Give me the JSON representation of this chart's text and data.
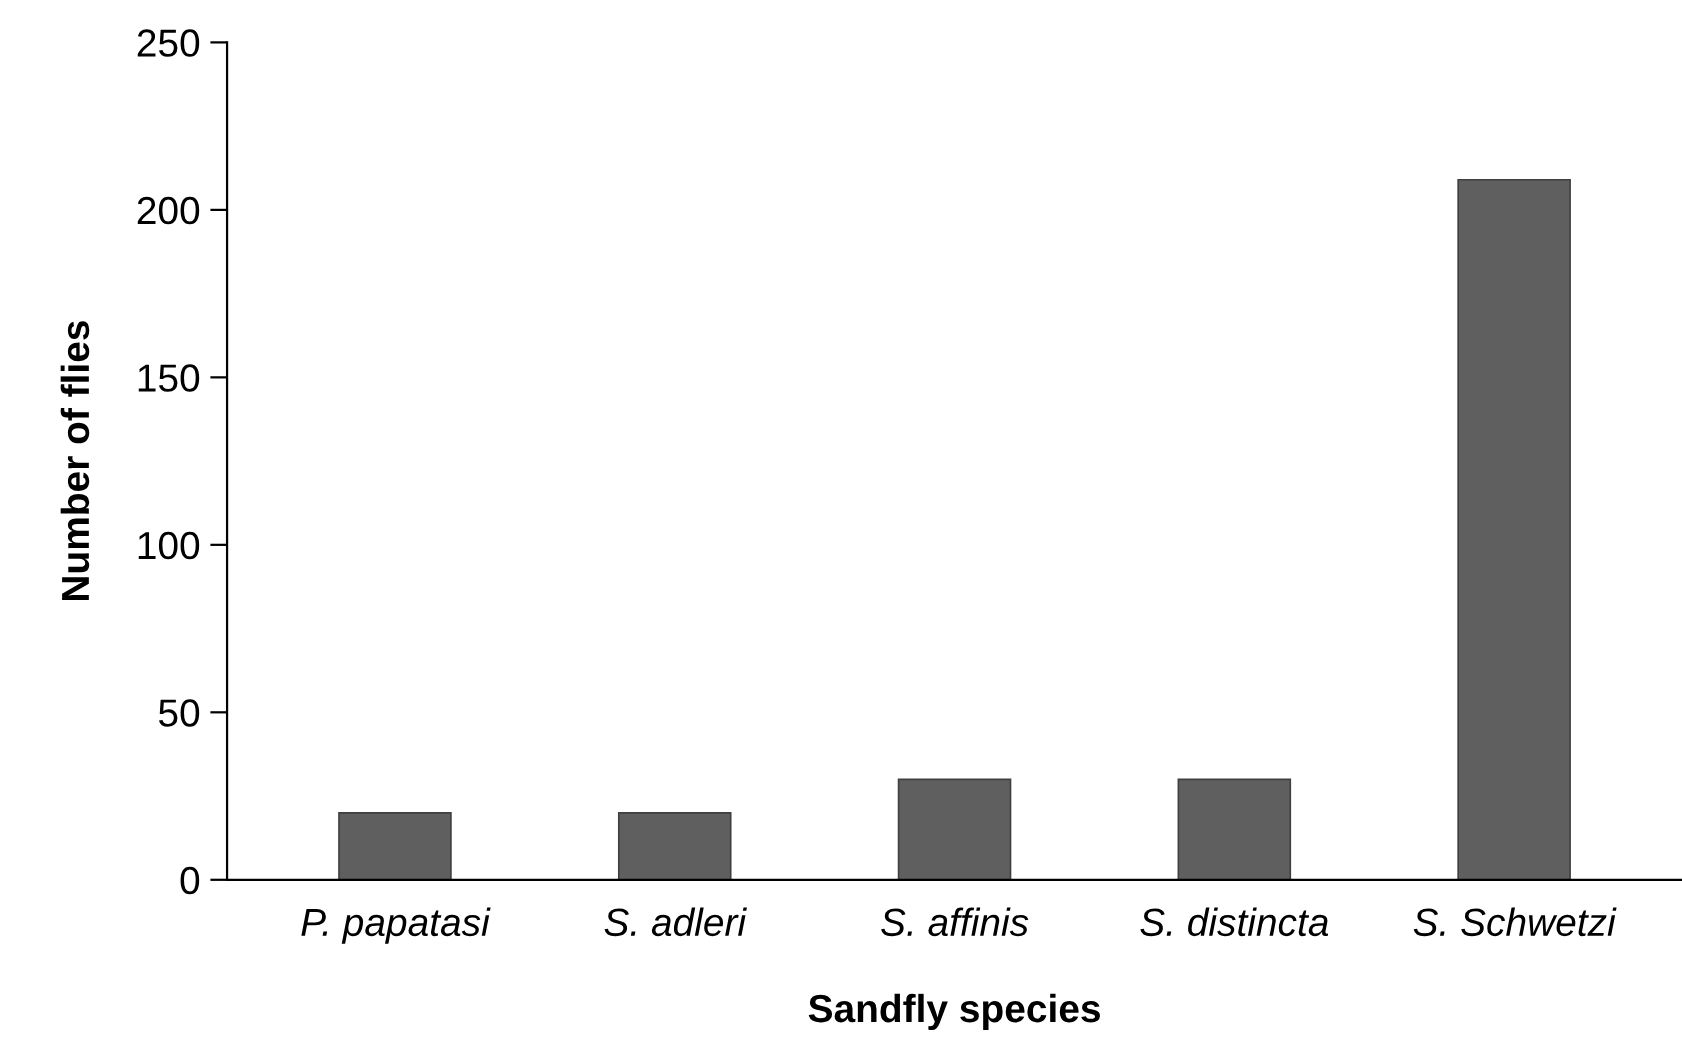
{
  "chart_data": {
    "type": "bar",
    "xlabel": "Sandfly species",
    "ylabel": "Number of flies",
    "categories": [
      "P. papatasi",
      "S. adleri",
      "S. affinis",
      "S. distincta",
      "S. Schwetzi"
    ],
    "values": [
      20,
      20,
      30,
      30,
      209
    ],
    "color": "#5f5f5f",
    "ylim": [
      0,
      250
    ],
    "yticks": [
      0,
      50,
      100,
      150,
      200,
      250
    ],
    "grid": false,
    "legend": false
  }
}
